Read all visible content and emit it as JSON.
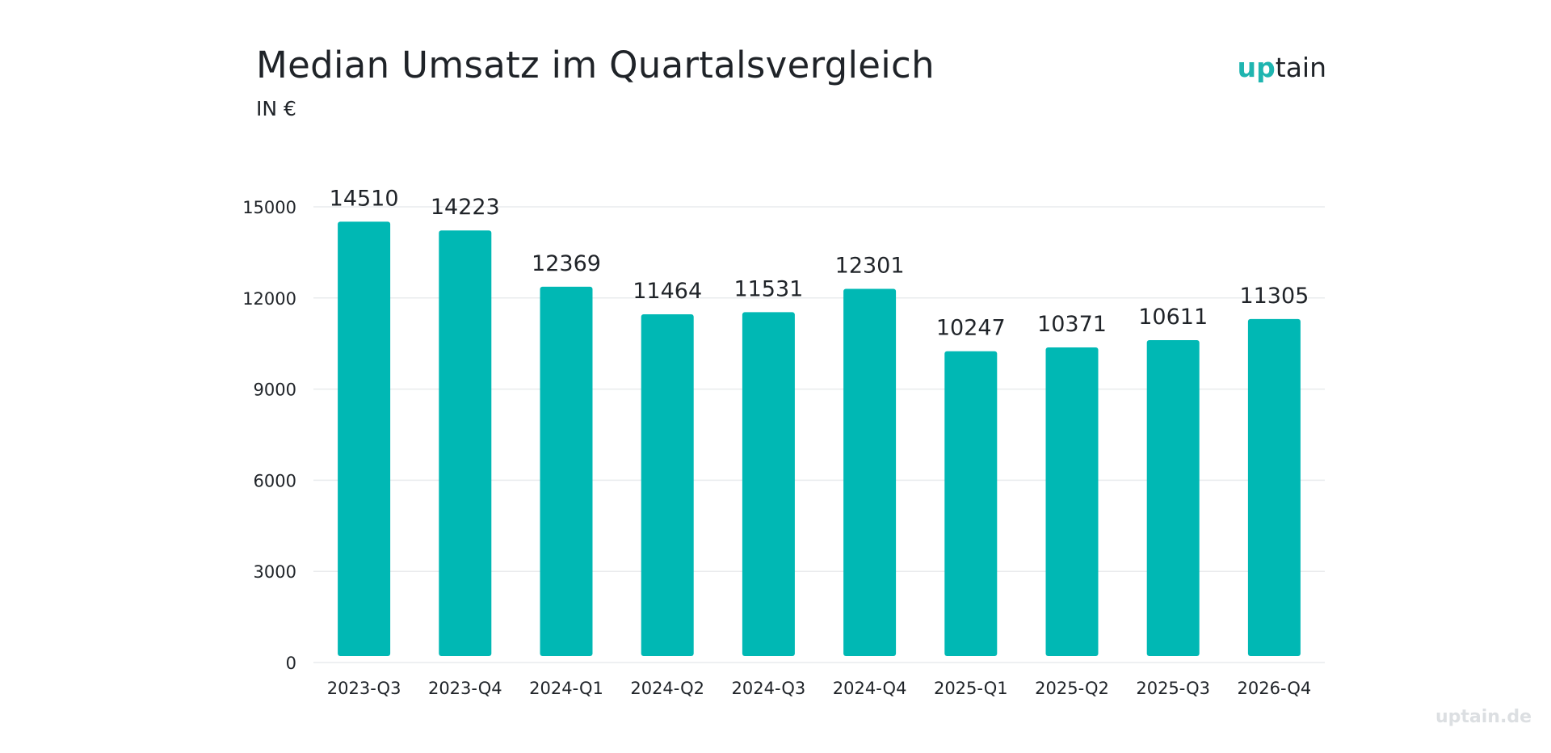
{
  "title": "Median Umsatz im Quartalsvergleich",
  "subtitle": "IN €",
  "logo": {
    "part1": "up",
    "part2": "tain"
  },
  "watermark": "uptain.de",
  "colors": {
    "bar": "#00b8b4",
    "grid": "#e9ebed",
    "accent": "#1fb5b0"
  },
  "chart_data": {
    "type": "bar",
    "categories": [
      "2023-Q3",
      "2023-Q4",
      "2024-Q1",
      "2024-Q2",
      "2024-Q3",
      "2024-Q4",
      "2025-Q1",
      "2025-Q2",
      "2025-Q3",
      "2026-Q4"
    ],
    "values": [
      14510,
      14223,
      12369,
      11464,
      11531,
      12301,
      10247,
      10371,
      10611,
      11305
    ],
    "data_labels": [
      "14510",
      "14223",
      "12369",
      "11464",
      "11531",
      "12301",
      "10247",
      "10371",
      "10611",
      "11305"
    ],
    "yticks": [
      0,
      3000,
      6000,
      9000,
      12000,
      15000
    ],
    "ylim": [
      0,
      15000
    ],
    "grid": true,
    "legend": "none"
  }
}
